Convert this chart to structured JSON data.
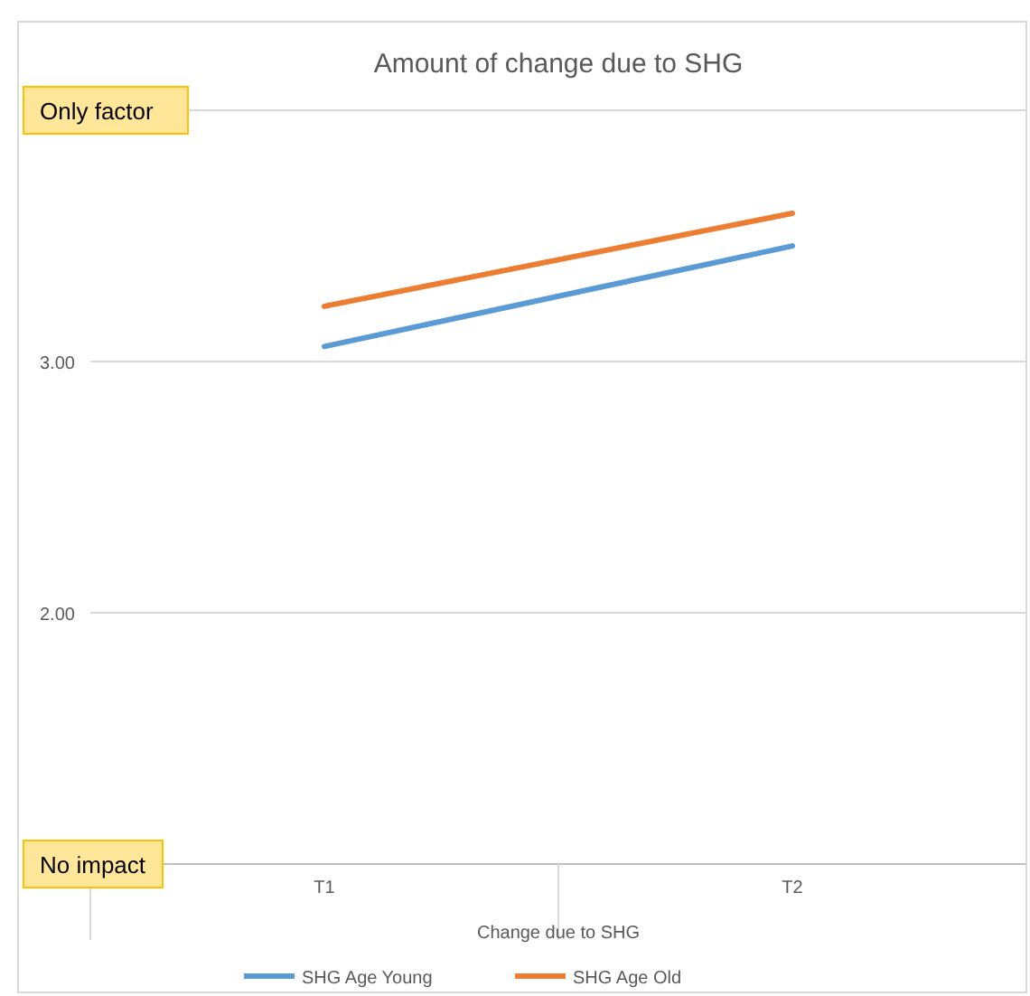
{
  "chart_data": {
    "type": "line",
    "title": "Amount of change due to SHG",
    "xlabel": "Change due to SHG",
    "categories": [
      "T1",
      "T2"
    ],
    "series": [
      {
        "name": "SHG Age Young",
        "color": "#5b9bd5",
        "values": [
          3.06,
          3.46
        ]
      },
      {
        "name": "SHG Age Old",
        "color": "#ed7d31",
        "values": [
          3.22,
          3.59
        ]
      }
    ],
    "ylim": [
      1,
      4
    ],
    "yticks": [
      {
        "value": 1,
        "label": "No impact"
      },
      {
        "value": 2,
        "label": "2.00"
      },
      {
        "value": 3,
        "label": "3.00"
      },
      {
        "value": 4,
        "label": "Only factor"
      }
    ],
    "grid": "y",
    "legend": "bottom",
    "marker": "none",
    "line_style": "solid"
  }
}
